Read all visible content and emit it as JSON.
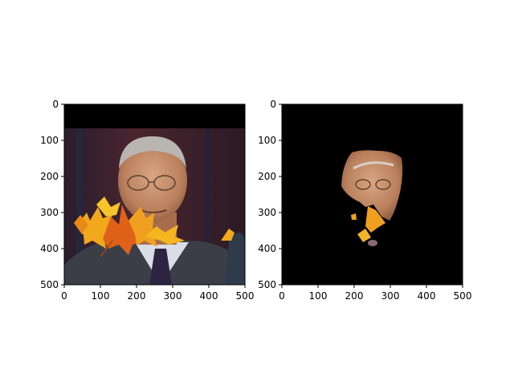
{
  "chart_data": [
    {
      "type": "image",
      "title": "",
      "xlabel": "",
      "ylabel": "",
      "xlim": [
        0,
        500
      ],
      "ylim": [
        500,
        0
      ],
      "xticks": [
        0,
        100,
        200,
        300,
        400,
        500
      ],
      "yticks": [
        0,
        100,
        200,
        300,
        400,
        500
      ],
      "xtick_labels": [
        "0",
        "100",
        "200",
        "300",
        "400",
        "500"
      ],
      "ytick_labels": [
        "0",
        "100",
        "200",
        "300",
        "400",
        "500"
      ],
      "content": "photo-with-leaf-occluders"
    },
    {
      "type": "image",
      "title": "",
      "xlabel": "",
      "ylabel": "",
      "xlim": [
        0,
        500
      ],
      "ylim": [
        500,
        0
      ],
      "xticks": [
        0,
        100,
        200,
        300,
        400,
        500
      ],
      "yticks": [
        0,
        100,
        200,
        300,
        400,
        500
      ],
      "xtick_labels": [
        "0",
        "100",
        "200",
        "300",
        "400",
        "500"
      ],
      "ytick_labels": [
        "0",
        "100",
        "200",
        "300",
        "400",
        "500"
      ],
      "content": "segmented-face-mask",
      "background_color": "#000000"
    }
  ],
  "colors": {
    "leaf_orange": "#e87d12",
    "leaf_yellow": "#f5b21a",
    "leaf_red": "#d2541a",
    "skin": "#c99470",
    "suit": "#3a3d45",
    "backdrop": "#3b1f2a"
  }
}
